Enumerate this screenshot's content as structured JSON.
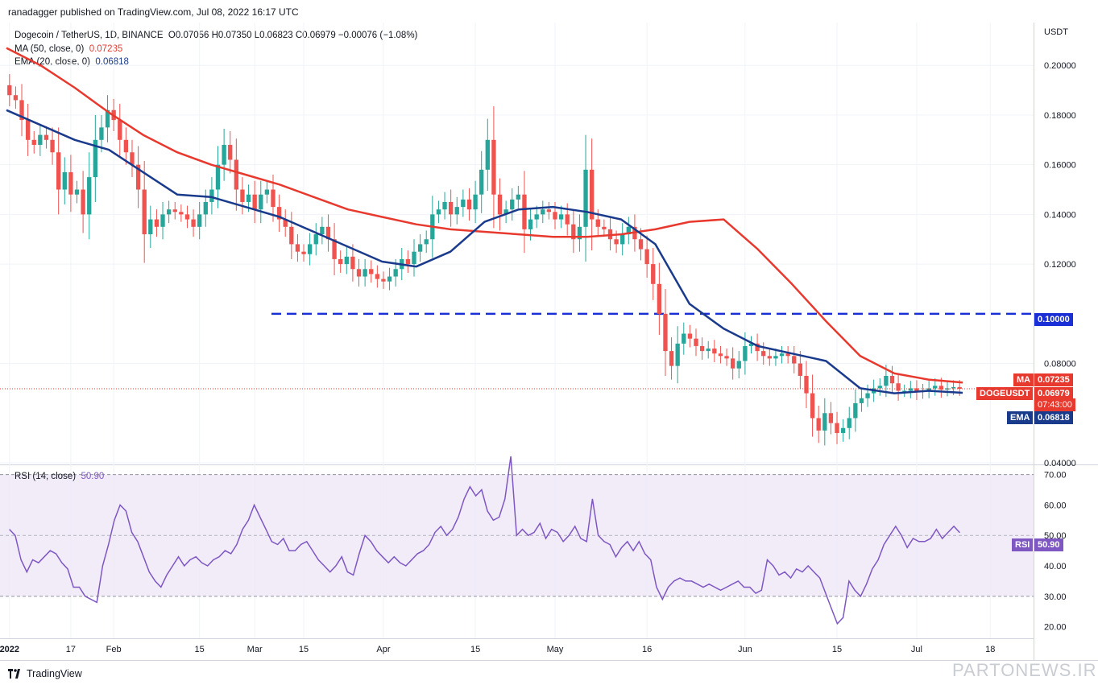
{
  "publisher": "ranadagger published on TradingView.com, Jul 08, 2022 16:17 UTC",
  "brand": "TradingView",
  "watermark": "PARTONEWS.IR",
  "legend": {
    "symbol": "Dogecoin / TetherUS, 1D, BINANCE",
    "ohlc": "O0.07056  H0.07350  L0.06823  C0.06979  −0.00076 (−1.08%)",
    "ma_label": "MA (50, close, 0)",
    "ma_value": "0.07235",
    "ema_label": "EMA (20, close, 0)",
    "ema_value": "0.06818",
    "rsi_label": "RSI (14, close)",
    "rsi_value": "50.90"
  },
  "tags": {
    "ma_name": "MA",
    "ma_value": "0.07235",
    "symbol_name": "DOGEUSDT",
    "close_value": "0.06979",
    "countdown": "07:43:00",
    "ema_name": "EMA",
    "ema_value": "0.06818",
    "level_value": "0.10000",
    "rsi_name": "RSI",
    "rsi_value": "50.90"
  },
  "colors": {
    "up": "#26a69a",
    "down": "#ef5350",
    "ma": "#e8392e",
    "ema": "#1a3a8c",
    "rsi": "#7e57c2",
    "level": "#1a2fd6",
    "rsi_band": "#ede7f6"
  },
  "chart_data": [
    {
      "type": "candlestick",
      "currency": "USDT",
      "y_ticks": [
        "0.20000",
        "0.18000",
        "0.16000",
        "0.14000",
        "0.12000",
        "0.08000",
        "0.04000"
      ],
      "ylim": [
        0.04,
        0.214
      ],
      "x_tick_labels": [
        "2022",
        "17",
        "Feb",
        "15",
        "Mar",
        "15",
        "Apr",
        "15",
        "May",
        "16",
        "Jun",
        "15",
        "Jul",
        "18"
      ],
      "horizontal_level": 0.1,
      "close_series": [
        0.188,
        0.186,
        0.178,
        0.17,
        0.168,
        0.172,
        0.17,
        0.165,
        0.15,
        0.157,
        0.148,
        0.15,
        0.14,
        0.155,
        0.17,
        0.175,
        0.182,
        0.178,
        0.17,
        0.165,
        0.16,
        0.15,
        0.132,
        0.138,
        0.135,
        0.14,
        0.142,
        0.141,
        0.14,
        0.138,
        0.135,
        0.14,
        0.145,
        0.15,
        0.16,
        0.168,
        0.162,
        0.15,
        0.145,
        0.148,
        0.142,
        0.148,
        0.15,
        0.143,
        0.138,
        0.135,
        0.128,
        0.125,
        0.124,
        0.128,
        0.132,
        0.135,
        0.13,
        0.122,
        0.12,
        0.123,
        0.118,
        0.115,
        0.118,
        0.116,
        0.114,
        0.113,
        0.115,
        0.118,
        0.122,
        0.12,
        0.125,
        0.128,
        0.13,
        0.14,
        0.142,
        0.145,
        0.14,
        0.143,
        0.146,
        0.142,
        0.148,
        0.158,
        0.17,
        0.148,
        0.14,
        0.142,
        0.146,
        0.148,
        0.134,
        0.138,
        0.14,
        0.142,
        0.141,
        0.138,
        0.14,
        0.136,
        0.13,
        0.135,
        0.158,
        0.138,
        0.135,
        0.134,
        0.13,
        0.128,
        0.132,
        0.135,
        0.13,
        0.126,
        0.12,
        0.112,
        0.1,
        0.085,
        0.079,
        0.088,
        0.092,
        0.09,
        0.087,
        0.085,
        0.086,
        0.084,
        0.083,
        0.082,
        0.078,
        0.081,
        0.087,
        0.088,
        0.085,
        0.083,
        0.082,
        0.083,
        0.084,
        0.083,
        0.08,
        0.075,
        0.068,
        0.058,
        0.053,
        0.06,
        0.056,
        0.052,
        0.054,
        0.058,
        0.064,
        0.066,
        0.068,
        0.07,
        0.071,
        0.075,
        0.072,
        0.069,
        0.069,
        0.07,
        0.0685,
        0.069,
        0.07,
        0.071,
        0.0695,
        0.07,
        0.0705,
        0.06979
      ],
      "ma_50_series_sampled": [
        0.207,
        0.2,
        0.191,
        0.181,
        0.172,
        0.165,
        0.16,
        0.156,
        0.152,
        0.147,
        0.142,
        0.139,
        0.136,
        0.134,
        0.133,
        0.132,
        0.131,
        0.131,
        0.132,
        0.134,
        0.137,
        0.138,
        0.126,
        0.112,
        0.097,
        0.083,
        0.076,
        0.0735,
        0.07235
      ],
      "ema_20_series_sampled": [
        0.182,
        0.176,
        0.17,
        0.166,
        0.157,
        0.148,
        0.147,
        0.143,
        0.139,
        0.133,
        0.127,
        0.121,
        0.119,
        0.125,
        0.137,
        0.142,
        0.143,
        0.141,
        0.138,
        0.128,
        0.104,
        0.094,
        0.087,
        0.084,
        0.081,
        0.07,
        0.068,
        0.069,
        0.06818
      ]
    },
    {
      "type": "line",
      "name": "RSI (14, close)",
      "y_ticks": [
        "70.00",
        "60.00",
        "50.00",
        "40.00",
        "30.00",
        "20.00"
      ],
      "ylim": [
        17,
        72
      ],
      "band": [
        30,
        70
      ],
      "values": [
        52,
        50,
        42,
        38,
        42,
        41,
        43,
        45,
        44,
        41,
        39,
        33,
        33,
        30,
        29,
        28,
        40,
        47,
        55,
        60,
        58,
        51,
        48,
        43,
        38,
        35,
        33,
        37,
        40,
        43,
        40,
        42,
        43,
        41,
        40,
        42,
        43,
        45,
        44,
        47,
        52,
        55,
        60,
        56,
        52,
        48,
        47,
        49,
        45,
        45,
        47,
        48,
        45,
        42,
        40,
        38,
        40,
        43,
        38,
        37,
        44,
        50,
        48,
        45,
        43,
        41,
        43,
        41,
        40,
        42,
        44,
        45,
        47,
        51,
        53,
        50,
        52,
        56,
        62,
        66,
        63,
        65,
        58,
        55,
        56,
        62,
        76,
        50,
        52,
        50,
        51,
        54,
        49,
        52,
        51,
        48,
        50,
        53,
        49,
        48,
        62,
        50,
        48,
        47,
        43,
        46,
        48,
        45,
        48,
        44,
        42,
        33,
        29,
        33,
        35,
        36,
        35,
        35,
        34,
        33,
        34,
        33,
        32,
        33,
        34,
        35,
        33,
        33,
        31,
        32,
        42,
        40,
        37,
        38,
        36,
        39,
        38,
        40,
        38,
        36,
        31,
        26,
        21,
        23,
        35,
        32,
        30,
        34,
        39,
        42,
        47,
        50,
        53,
        50,
        46,
        49,
        48,
        48,
        49,
        52,
        49,
        51,
        53,
        50.9
      ]
    }
  ]
}
